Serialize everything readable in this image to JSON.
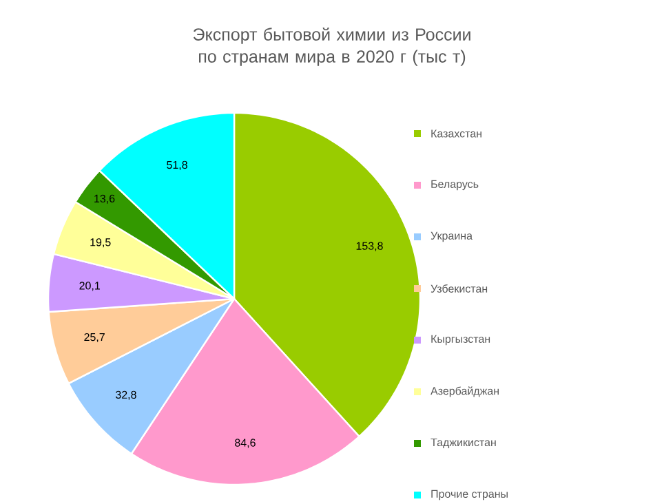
{
  "chart_data": {
    "type": "pie",
    "title": "Экспорт бытовой химии из России по странам мира в 2020 г (тыс т)",
    "categories": [
      "Казахстан",
      "Беларусь",
      "Украина",
      "Узбекистан",
      "Кыргызстан",
      "Азербайджан",
      "Таджикистан",
      "Прочие страны"
    ],
    "values": [
      153.8,
      84.6,
      32.8,
      25.7,
      20.1,
      19.5,
      13.6,
      51.8
    ],
    "value_labels": [
      "153,8",
      "84,6",
      "32,8",
      "25,7",
      "20,1",
      "19,5",
      "13,6",
      "51,8"
    ],
    "colors": [
      "#99cc00",
      "#ff99cc",
      "#99ccff",
      "#ffcc99",
      "#cc99ff",
      "#ffff99",
      "#339900",
      "#00ffff"
    ],
    "legend": "right"
  }
}
